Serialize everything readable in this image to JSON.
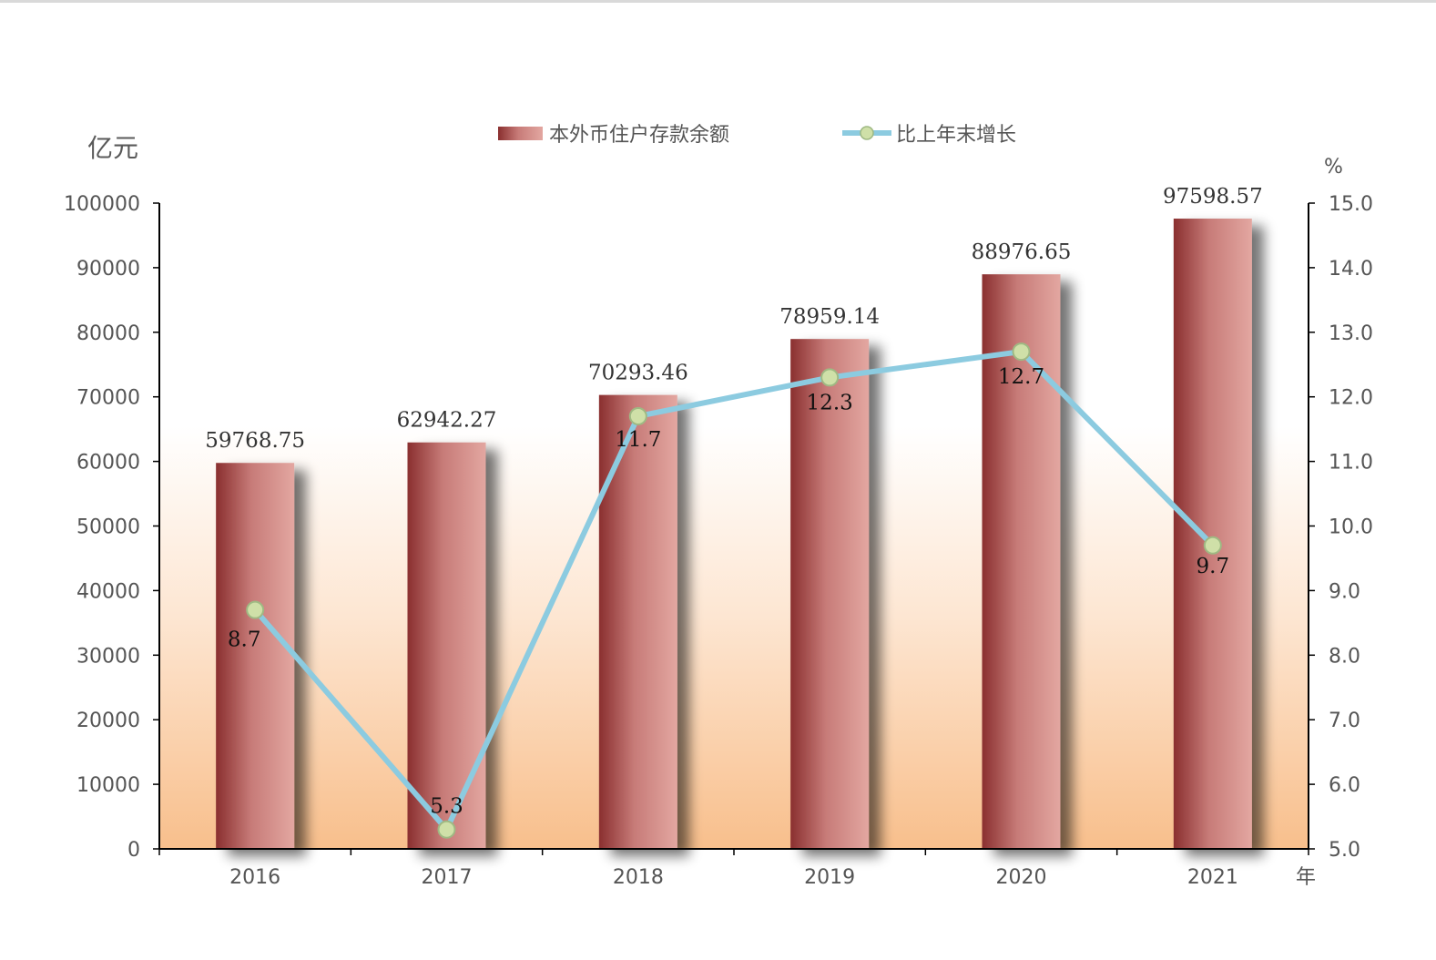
{
  "chart_data": {
    "type": "bar+line",
    "categories": [
      "2016",
      "2017",
      "2018",
      "2019",
      "2020",
      "2021"
    ],
    "series": [
      {
        "name": "本外币住户存款余额",
        "type": "bar",
        "axis": "left",
        "values": [
          59768.75,
          62942.27,
          70293.46,
          78959.14,
          88976.65,
          97598.57
        ],
        "labels": [
          "59768.75",
          "62942.27",
          "70293.46",
          "78959.14",
          "88976.65",
          "97598.57"
        ],
        "color": "#a0403f"
      },
      {
        "name": "比上年末增长",
        "type": "line",
        "axis": "right",
        "values": [
          8.7,
          5.3,
          11.7,
          12.3,
          12.7,
          9.7
        ],
        "labels": [
          "8.7",
          "5.3",
          "11.7",
          "12.3",
          "12.7",
          "9.7"
        ],
        "color": "#8ccbe0",
        "marker_color": "#cfe0a8"
      }
    ],
    "y_left": {
      "unit": "亿元",
      "min": 0,
      "max": 100000,
      "ticks": [
        "0",
        "10000",
        "20000",
        "30000",
        "40000",
        "50000",
        "60000",
        "70000",
        "80000",
        "90000",
        "100000"
      ]
    },
    "y_right": {
      "unit": "%",
      "min": 5.0,
      "max": 15.0,
      "ticks": [
        "5.0",
        "6.0",
        "7.0",
        "8.0",
        "9.0",
        "10.0",
        "11.0",
        "12.0",
        "13.0",
        "14.0",
        "15.0"
      ]
    },
    "x_unit": "年",
    "legend_position": "top",
    "grid": false,
    "background": {
      "top_color": "#ffffff",
      "bottom_color": "#f8bf8c"
    }
  }
}
